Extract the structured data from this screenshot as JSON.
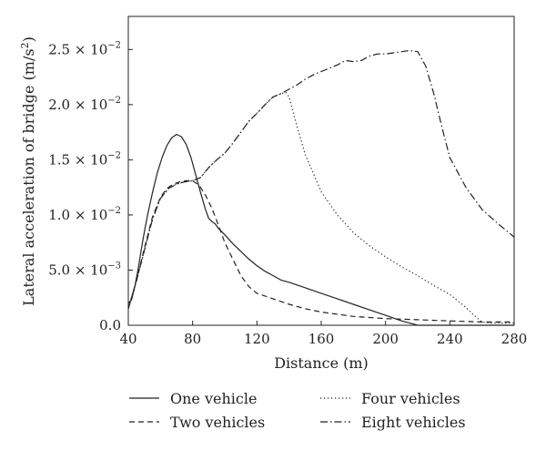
{
  "chart_data": {
    "type": "line",
    "xlabel": "Distance (m)",
    "ylabel_main": "Lateral acceleration of bridge (m/s",
    "ylabel_sup": "2",
    "ylabel_end": ")",
    "xlim": [
      40,
      280
    ],
    "ylim": [
      0,
      0.028
    ],
    "x_ticks": [
      40,
      80,
      120,
      160,
      200,
      240,
      280
    ],
    "x_tick_labels": [
      "40",
      "80",
      "120",
      "160",
      "200",
      "240",
      "280"
    ],
    "y_ticks": [
      {
        "value": 0.0,
        "mant": "0.0",
        "exp": ""
      },
      {
        "value": 0.005,
        "mant": "5.0",
        "exp": "−3"
      },
      {
        "value": 0.01,
        "mant": "1.0",
        "exp": "−2"
      },
      {
        "value": 0.015,
        "mant": "1.5",
        "exp": "−2"
      },
      {
        "value": 0.02,
        "mant": "2.0",
        "exp": "−2"
      },
      {
        "value": 0.025,
        "mant": "2.5",
        "exp": "−2"
      }
    ],
    "times_symbol": "× 10",
    "grid": false,
    "legend_placement": "bottom",
    "series": [
      {
        "name": "One vehicle",
        "dash": "solid",
        "x": [
          40,
          42,
          44,
          46,
          48,
          50,
          52,
          55,
          58,
          61,
          64,
          67,
          70,
          73,
          76,
          79,
          82,
          85,
          88,
          90,
          92,
          94,
          96,
          100,
          105,
          110,
          115,
          120,
          125,
          130,
          135,
          140,
          150,
          160,
          170,
          180,
          190,
          200,
          210,
          215,
          220,
          280
        ],
        "y": [
          0.002,
          0.0023,
          0.0035,
          0.005,
          0.0068,
          0.0085,
          0.01,
          0.012,
          0.0138,
          0.0152,
          0.0163,
          0.017,
          0.0173,
          0.0171,
          0.0164,
          0.0152,
          0.0136,
          0.012,
          0.0105,
          0.0097,
          0.0094,
          0.0092,
          0.0088,
          0.0082,
          0.0074,
          0.0067,
          0.006,
          0.0054,
          0.0049,
          0.0045,
          0.0041,
          0.0039,
          0.0034,
          0.0029,
          0.0024,
          0.0019,
          0.0014,
          0.0009,
          0.0004,
          0.0002,
          0.0,
          0.0
        ]
      },
      {
        "name": "Two vehicles",
        "dash": "dashed",
        "x": [
          40,
          45,
          50,
          55,
          60,
          64,
          68,
          72,
          76,
          80,
          84,
          88,
          92,
          96,
          100,
          105,
          110,
          115,
          120,
          130,
          140,
          150,
          160,
          180,
          200,
          220,
          240,
          260,
          280
        ],
        "y": [
          0.0015,
          0.004,
          0.007,
          0.0098,
          0.0116,
          0.0124,
          0.0128,
          0.013,
          0.0131,
          0.0131,
          0.0127,
          0.0118,
          0.0106,
          0.0091,
          0.0075,
          0.006,
          0.0045,
          0.0035,
          0.0029,
          0.0024,
          0.0019,
          0.0015,
          0.0012,
          0.0008,
          0.0006,
          0.0005,
          0.0004,
          0.0003,
          0.0003
        ]
      },
      {
        "name": "Four vehicles",
        "dash": "dotted",
        "x": [
          40,
          45,
          50,
          55,
          60,
          65,
          70,
          75,
          80,
          85,
          90,
          95,
          100,
          105,
          110,
          115,
          120,
          125,
          130,
          135,
          138,
          140,
          145,
          150,
          160,
          170,
          180,
          190,
          200,
          210,
          220,
          230,
          240,
          250,
          255,
          260,
          265,
          270,
          280
        ],
        "y": [
          0.0015,
          0.004,
          0.0068,
          0.0096,
          0.0115,
          0.0124,
          0.0128,
          0.013,
          0.0131,
          0.0134,
          0.0143,
          0.015,
          0.0156,
          0.0165,
          0.0175,
          0.0185,
          0.0192,
          0.02,
          0.0207,
          0.021,
          0.0211,
          0.0207,
          0.018,
          0.0155,
          0.0121,
          0.01,
          0.0084,
          0.0072,
          0.0062,
          0.0053,
          0.0045,
          0.0036,
          0.0028,
          0.0016,
          0.0009,
          0.0003,
          0.0002,
          0.0002,
          0.0002
        ]
      },
      {
        "name": "Eight vehicles",
        "dash": "dashdot",
        "x": [
          40,
          45,
          50,
          55,
          60,
          65,
          70,
          75,
          80,
          85,
          90,
          95,
          100,
          105,
          110,
          115,
          120,
          125,
          130,
          135,
          140,
          145,
          150,
          155,
          160,
          165,
          170,
          175,
          180,
          185,
          190,
          195,
          200,
          205,
          210,
          215,
          220,
          225,
          230,
          235,
          240,
          250,
          260,
          270,
          280
        ],
        "y": [
          0.0015,
          0.004,
          0.0068,
          0.0096,
          0.0115,
          0.0124,
          0.0128,
          0.013,
          0.0131,
          0.0134,
          0.0143,
          0.015,
          0.0156,
          0.0165,
          0.0175,
          0.0185,
          0.0192,
          0.02,
          0.0207,
          0.021,
          0.0214,
          0.0218,
          0.0223,
          0.0227,
          0.023,
          0.0233,
          0.0236,
          0.024,
          0.0239,
          0.024,
          0.0244,
          0.0246,
          0.0246,
          0.0247,
          0.0248,
          0.0249,
          0.0248,
          0.0235,
          0.021,
          0.018,
          0.0152,
          0.0125,
          0.0105,
          0.0092,
          0.008
        ]
      }
    ]
  }
}
